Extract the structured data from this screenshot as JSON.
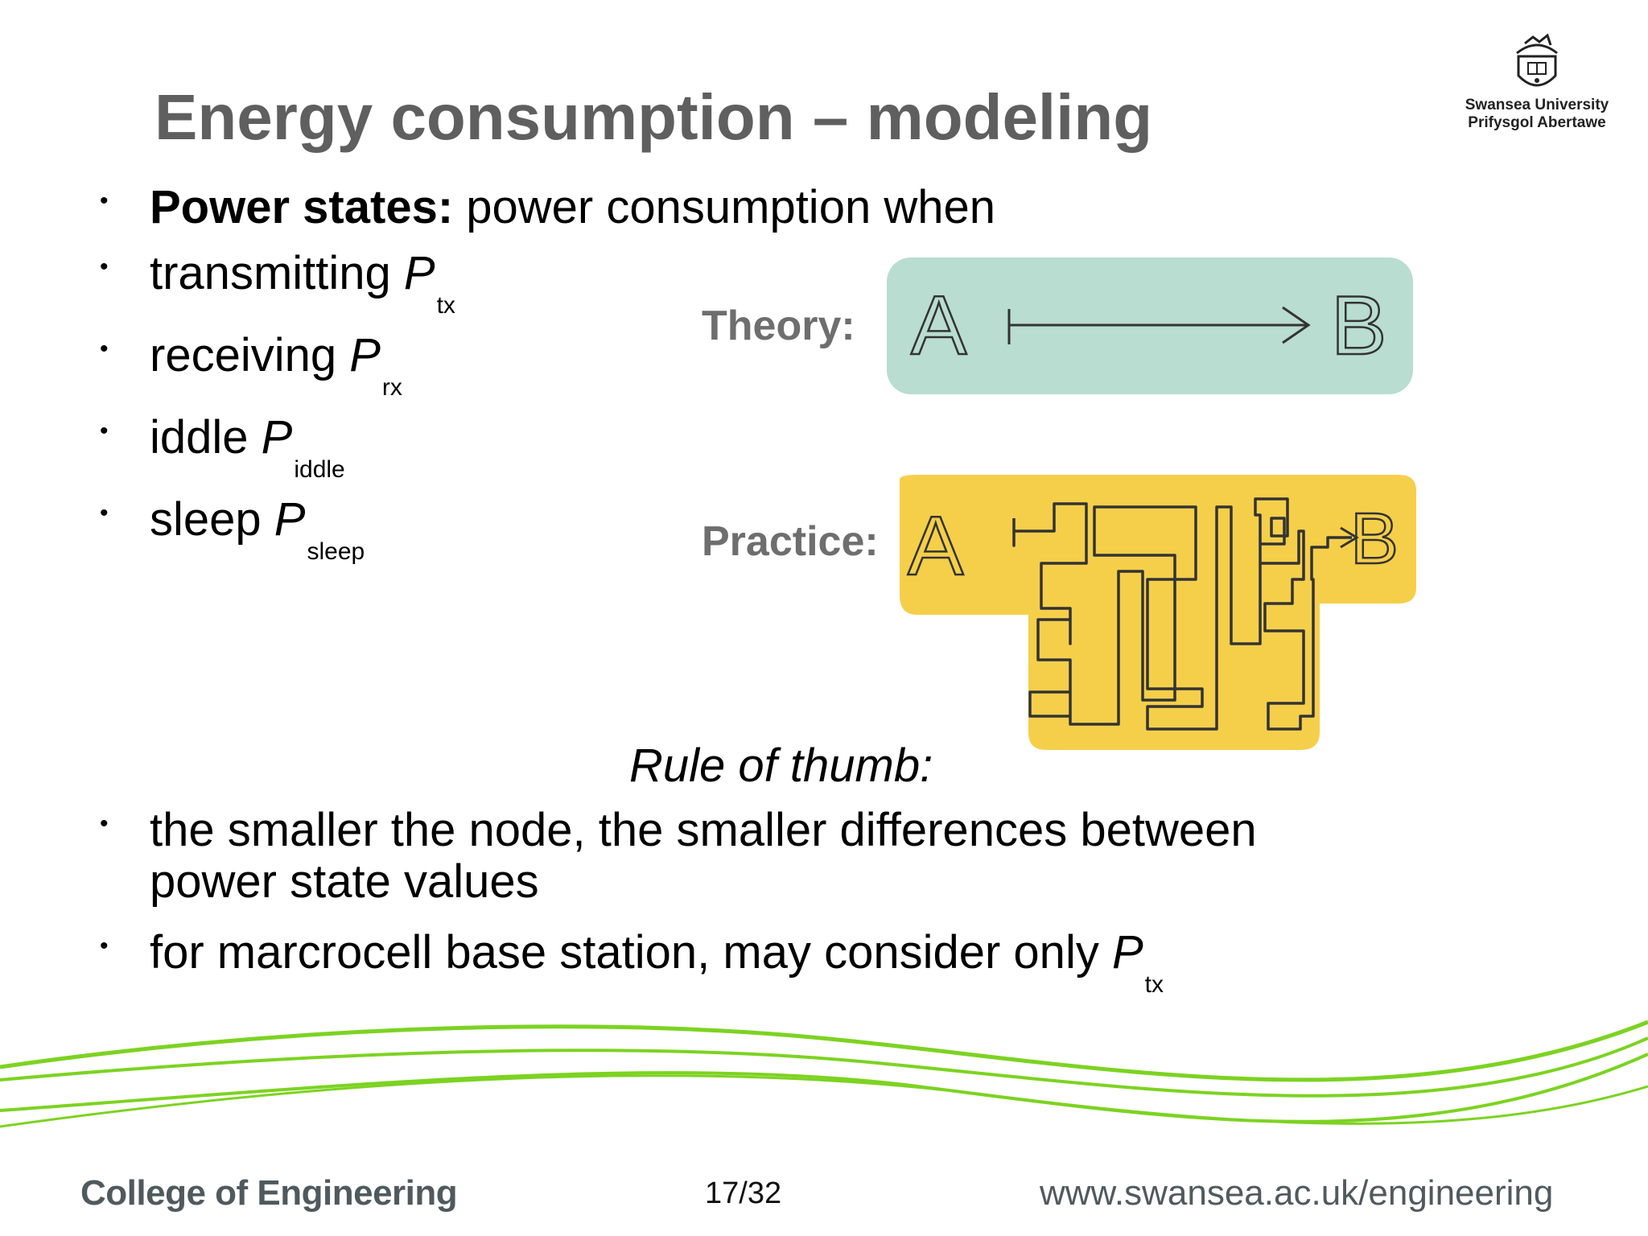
{
  "title": "Energy consumption – modeling",
  "logo": {
    "line1": "Swansea University",
    "line2": "Prifysgol Abertawe",
    "crest_icon": "university-crest-icon"
  },
  "bullets": {
    "power_states_bold": "Power states:",
    "power_states_rest": " power consumption when",
    "transmitting": {
      "text": "transmitting ",
      "symbol": "P",
      "sub": "tx"
    },
    "receiving": {
      "text": "receiving ",
      "symbol": "P",
      "sub": "rx"
    },
    "iddle": {
      "text": "iddle ",
      "symbol": "P",
      "sub": "iddle"
    },
    "sleep": {
      "text": "sleep ",
      "symbol": "P",
      "sub": "sleep"
    },
    "smaller_line1": "the smaller the node, the smaller differences between",
    "smaller_line2": "power state values",
    "macro": {
      "text": "for marcrocell base station, may consider only ",
      "symbol": "P",
      "sub": "tx"
    }
  },
  "bullet_glyph": "•",
  "rule_of_thumb": "Rule of thumb:",
  "illustration": {
    "theory_label": "Theory:",
    "practice_label": "Practice:",
    "point_a": "A",
    "point_b": "B",
    "theory_color": "#b9ddd0",
    "practice_color": "#f5cf4a"
  },
  "footer": {
    "college": "College of Engineering",
    "page": "17/32",
    "url": "www.swansea.ac.uk/engineering",
    "accent": "#7cd321"
  }
}
